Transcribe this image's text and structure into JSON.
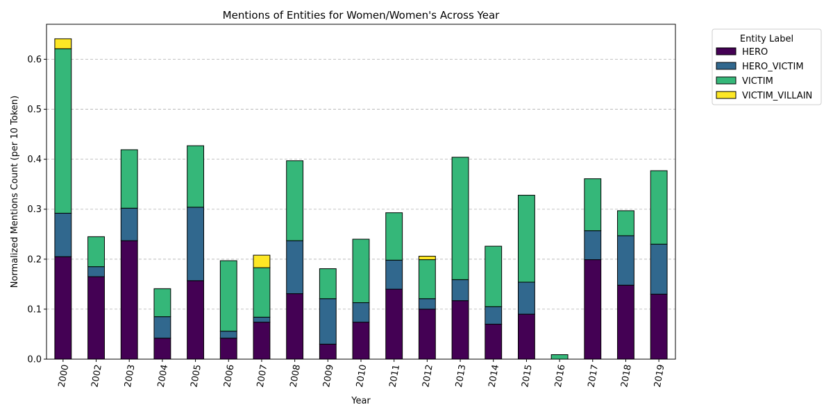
{
  "chart_data": {
    "type": "bar",
    "stacked": true,
    "title": "Mentions of Entities for Women/Women's Across Year",
    "xlabel": "Year",
    "ylabel": "Normalized Mentions Count (per 10 Token)",
    "ylim": [
      0,
      0.67
    ],
    "yticks": [
      "0.0",
      "0.1",
      "0.2",
      "0.3",
      "0.4",
      "0.5",
      "0.6"
    ],
    "grid": "y-dashed",
    "legend_title": "Entity Label",
    "legend_placement": "outside-top-right",
    "categories": [
      "2000",
      "2002",
      "2003",
      "2004",
      "2005",
      "2006",
      "2007",
      "2008",
      "2009",
      "2010",
      "2011",
      "2012",
      "2013",
      "2014",
      "2015",
      "2016",
      "2017",
      "2018",
      "2019"
    ],
    "series": [
      {
        "name": "HERO",
        "color": "#440154",
        "values": [
          0.205,
          0.165,
          0.237,
          0.042,
          0.157,
          0.042,
          0.074,
          0.131,
          0.03,
          0.074,
          0.14,
          0.1,
          0.117,
          0.07,
          0.09,
          0.0,
          0.199,
          0.148,
          0.13
        ]
      },
      {
        "name": "HERO_VICTIM",
        "color": "#31688e",
        "values": [
          0.087,
          0.02,
          0.065,
          0.043,
          0.147,
          0.014,
          0.01,
          0.106,
          0.091,
          0.039,
          0.058,
          0.021,
          0.042,
          0.035,
          0.064,
          0.0,
          0.058,
          0.099,
          0.1
        ]
      },
      {
        "name": "VICTIM",
        "color": "#35b779",
        "values": [
          0.329,
          0.06,
          0.117,
          0.056,
          0.123,
          0.141,
          0.099,
          0.16,
          0.06,
          0.127,
          0.095,
          0.078,
          0.245,
          0.121,
          0.174,
          0.009,
          0.104,
          0.05,
          0.147
        ]
      },
      {
        "name": "VICTIM_VILLAIN",
        "color": "#fde725",
        "values": [
          0.02,
          0.0,
          0.0,
          0.0,
          0.0,
          0.0,
          0.025,
          0.0,
          0.0,
          0.0,
          0.0,
          0.007,
          0.0,
          0.0,
          0.0,
          0.0,
          0.0,
          0.0,
          0.0
        ]
      }
    ]
  }
}
